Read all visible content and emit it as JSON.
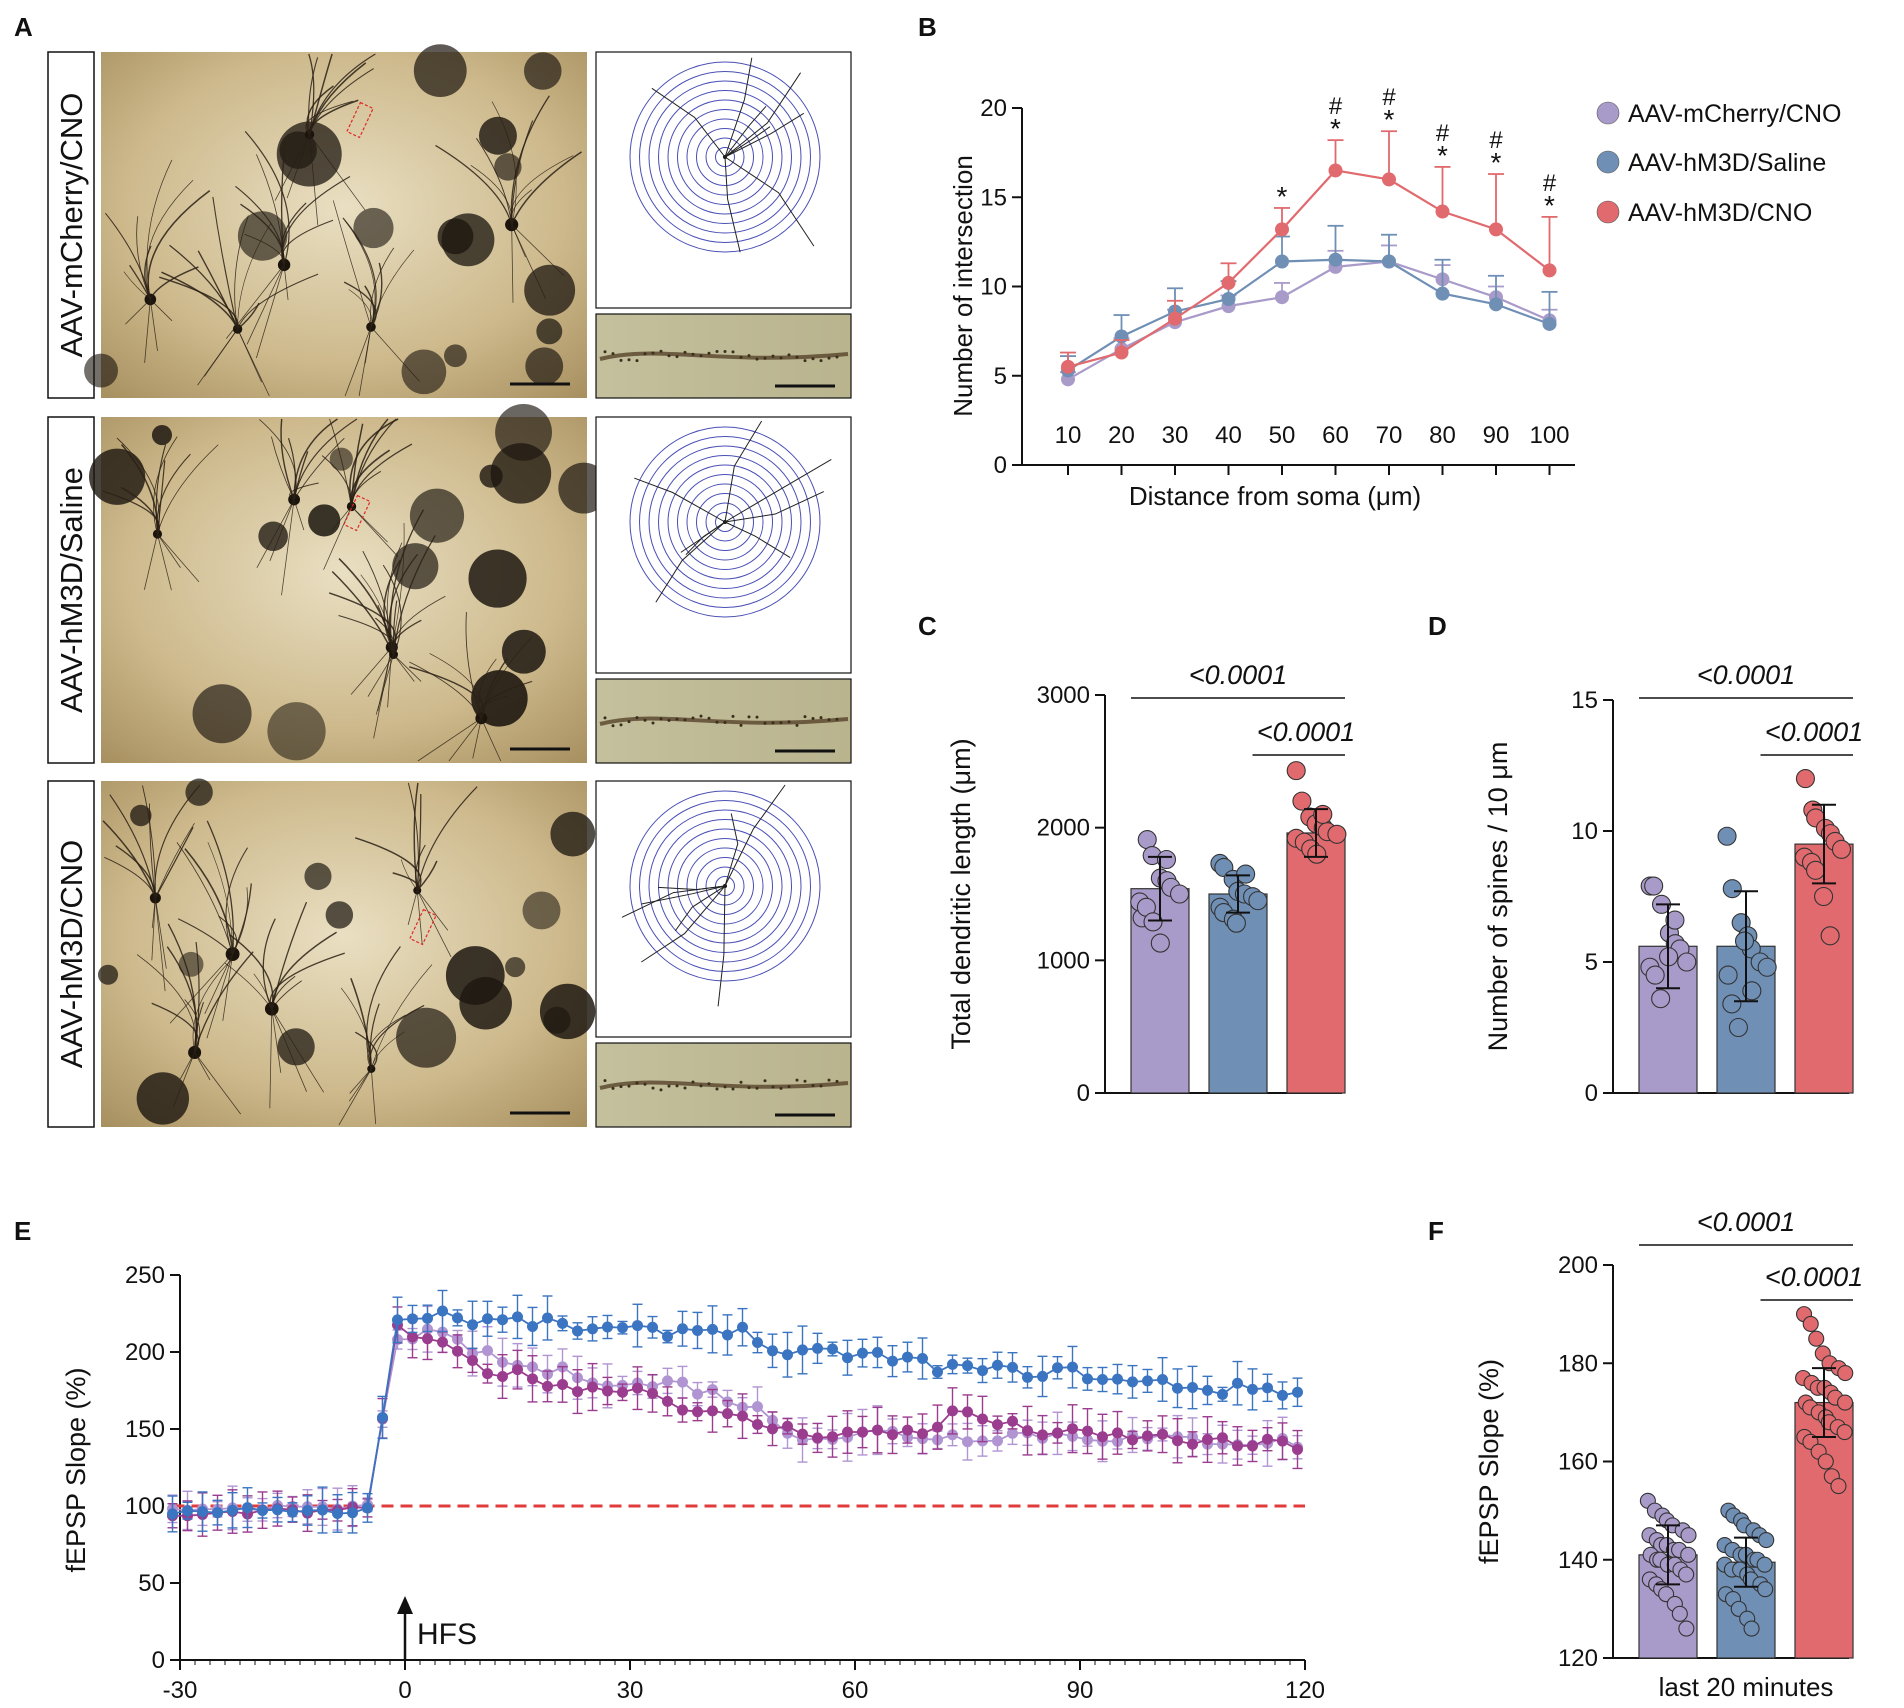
{
  "panel_letters": {
    "a": "A",
    "b": "B",
    "c": "C",
    "d": "D",
    "e": "E",
    "f": "F"
  },
  "colors": {
    "mcherry": "#a99bc9",
    "saline": "#6f8fb5",
    "hm3d_cno": "#e06a6e",
    "e_blue": "#3b74c0",
    "e_magenta": "#9b3d8f",
    "e_lavender": "#b095d2",
    "e_baseline": "#e23b3b"
  },
  "panelA": {
    "labels": [
      "AAV-mCherry/CNO",
      "AAV-hM3D/Saline",
      "AAV-hM3D/CNO"
    ]
  },
  "legend": [
    "AAV-mCherry/CNO",
    "AAV-hM3D/Saline",
    "AAV-hM3D/CNO"
  ],
  "chart_data": [
    {
      "id": "B",
      "type": "line",
      "ylabel": "Number of intersection",
      "xlabel": "Distance from soma    (μm)",
      "x": [
        10,
        20,
        30,
        40,
        50,
        60,
        70,
        80,
        90,
        100
      ],
      "ylim": [
        0,
        20
      ],
      "yticks": [
        0,
        5,
        10,
        15,
        20
      ],
      "series": [
        {
          "name": "AAV-mCherry/CNO",
          "values": [
            4.8,
            6.5,
            8.0,
            8.9,
            9.4,
            11.1,
            11.4,
            10.4,
            9.4,
            8.1
          ],
          "err": [
            0.4,
            0.6,
            0.7,
            0.6,
            0.8,
            0.9,
            0.9,
            0.8,
            0.6,
            0.6
          ]
        },
        {
          "name": "AAV-hM3D/Saline",
          "values": [
            5.3,
            7.2,
            8.6,
            9.3,
            11.4,
            11.5,
            11.4,
            9.6,
            9.0,
            7.9
          ],
          "err": [
            0.8,
            1.2,
            1.3,
            1.0,
            1.4,
            1.9,
            1.5,
            1.9,
            1.6,
            1.8
          ]
        },
        {
          "name": "AAV-hM3D/CNO",
          "values": [
            5.5,
            6.3,
            8.2,
            10.2,
            13.2,
            16.5,
            16.0,
            14.2,
            13.2,
            10.9
          ],
          "err": [
            0.8,
            0.7,
            1.0,
            1.1,
            1.2,
            1.7,
            2.7,
            2.5,
            3.1,
            3.0
          ]
        }
      ],
      "annotations": {
        "star_at": [
          50,
          60,
          70,
          80,
          90,
          100
        ],
        "hash_at": [
          60,
          70,
          80,
          90,
          100
        ],
        "star": "*",
        "hash": "#"
      }
    },
    {
      "id": "C",
      "type": "bar",
      "ylabel": "Total dendritic length (μm)",
      "categories": [
        "AAV-mCherry/CNO",
        "AAV-hM3D/Saline",
        "AAV-hM3D/CNO"
      ],
      "values": [
        1540,
        1500,
        1960
      ],
      "err": [
        240,
        140,
        180
      ],
      "ylim": [
        0,
        3000
      ],
      "yticks": [
        0,
        1000,
        2000,
        3000
      ],
      "points": [
        [
          1320,
          1910,
          1790,
          1620,
          1600,
          1550,
          1500,
          1440,
          1400,
          1290,
          1130,
          1760
        ],
        [
          1730,
          1700,
          1610,
          1520,
          1500,
          1480,
          1450,
          1400,
          1360,
          1310,
          1280,
          1650
        ],
        [
          2430,
          2200,
          2080,
          2030,
          2000,
          1970,
          1950,
          1920,
          1890,
          1840,
          1800,
          2100
        ]
      ],
      "pvalues": [
        "<0.0001",
        "<0.0001"
      ]
    },
    {
      "id": "D",
      "type": "bar",
      "ylabel": "Number of spines / 10 μm",
      "categories": [
        "AAV-mCherry/CNO",
        "AAV-hM3D/Saline",
        "AAV-hM3D/CNO"
      ],
      "values": [
        5.6,
        5.6,
        9.5
      ],
      "err": [
        1.6,
        2.1,
        1.5
      ],
      "ylim": [
        0,
        15
      ],
      "yticks": [
        0,
        5,
        10,
        15
      ],
      "points": [
        [
          7.9,
          7.9,
          7.2,
          6.1,
          5.7,
          5.5,
          5.0,
          4.8,
          4.5,
          3.6,
          5.2,
          6.6
        ],
        [
          9.8,
          7.8,
          6.5,
          6.0,
          5.5,
          5.0,
          4.8,
          4.5,
          3.4,
          2.5,
          5.8,
          3.9
        ],
        [
          12.0,
          10.8,
          10.5,
          10.1,
          9.9,
          9.6,
          9.3,
          9.0,
          8.8,
          8.5,
          7.5,
          6.0
        ]
      ],
      "pvalues": [
        "<0.0001",
        "<0.0001"
      ]
    },
    {
      "id": "E",
      "type": "line",
      "ylabel": "fEPSP Slope (%)",
      "xlim": [
        -30,
        120
      ],
      "xticks": [
        -30,
        0,
        30,
        60,
        90,
        120
      ],
      "ylim": [
        0,
        250
      ],
      "yticks": [
        0,
        50,
        100,
        150,
        200,
        250
      ],
      "baseline": 100,
      "hfs_label": "HFS",
      "hfs_at": 0,
      "anchors": {
        "blue": [
          [
            -31,
            95
          ],
          [
            -25,
            97
          ],
          [
            -18,
            98
          ],
          [
            -10,
            96
          ],
          [
            -4,
            98
          ],
          [
            -2,
            220
          ],
          [
            2,
            222
          ],
          [
            4,
            228
          ],
          [
            8,
            220
          ],
          [
            16,
            220
          ],
          [
            24,
            215
          ],
          [
            32,
            213
          ],
          [
            40,
            215
          ],
          [
            44,
            215
          ],
          [
            48,
            207
          ],
          [
            50,
            196
          ],
          [
            58,
            200
          ],
          [
            66,
            195
          ],
          [
            72,
            190
          ],
          [
            78,
            188
          ],
          [
            84,
            187
          ],
          [
            90,
            187
          ],
          [
            96,
            180
          ],
          [
            102,
            180
          ],
          [
            108,
            175
          ],
          [
            114,
            177
          ],
          [
            120,
            173
          ]
        ],
        "magenta": [
          [
            -31,
            93
          ],
          [
            -25,
            95
          ],
          [
            -18,
            97
          ],
          [
            -10,
            96
          ],
          [
            -4,
            100
          ],
          [
            -2,
            215
          ],
          [
            2,
            210
          ],
          [
            6,
            200
          ],
          [
            12,
            187
          ],
          [
            18,
            183
          ],
          [
            24,
            175
          ],
          [
            30,
            178
          ],
          [
            36,
            168
          ],
          [
            40,
            160
          ],
          [
            46,
            155
          ],
          [
            52,
            148
          ],
          [
            58,
            147
          ],
          [
            64,
            147
          ],
          [
            70,
            150
          ],
          [
            74,
            162
          ],
          [
            80,
            152
          ],
          [
            86,
            148
          ],
          [
            92,
            145
          ],
          [
            98,
            145
          ],
          [
            104,
            143
          ],
          [
            110,
            140
          ],
          [
            116,
            140
          ],
          [
            120,
            139
          ]
        ],
        "lavender": [
          [
            -31,
            97
          ],
          [
            -25,
            99
          ],
          [
            -18,
            99
          ],
          [
            -10,
            98
          ],
          [
            -4,
            101
          ],
          [
            -2,
            210
          ],
          [
            2,
            212
          ],
          [
            6,
            208
          ],
          [
            12,
            195
          ],
          [
            18,
            188
          ],
          [
            24,
            185
          ],
          [
            30,
            178
          ],
          [
            36,
            180
          ],
          [
            40,
            175
          ],
          [
            46,
            165
          ],
          [
            52,
            147
          ],
          [
            58,
            145
          ],
          [
            64,
            148
          ],
          [
            70,
            145
          ],
          [
            76,
            145
          ],
          [
            82,
            147
          ],
          [
            88,
            146
          ],
          [
            94,
            145
          ],
          [
            100,
            143
          ],
          [
            106,
            143
          ],
          [
            112,
            142
          ],
          [
            118,
            141
          ],
          [
            120,
            140
          ]
        ]
      }
    },
    {
      "id": "F",
      "type": "bar",
      "ylabel": "fEPSP Slope (%)",
      "xlabel": "last 20 minutes",
      "categories": [
        "AAV-mCherry/CNO",
        "AAV-hM3D/Saline",
        "AAV-hM3D/CNO"
      ],
      "values": [
        141,
        139.5,
        172
      ],
      "err": [
        6,
        5,
        7
      ],
      "ylim": [
        120,
        200
      ],
      "yticks": [
        120,
        140,
        160,
        180,
        200
      ],
      "points": [
        [
          152,
          150,
          149,
          148,
          147,
          146,
          145,
          145,
          144,
          143,
          143,
          142,
          142,
          141,
          141,
          140,
          140,
          139,
          139,
          138,
          137,
          136,
          135,
          134,
          133,
          131,
          129,
          126
        ],
        [
          150,
          149,
          148,
          147,
          146,
          145,
          144,
          143,
          142,
          141,
          141,
          140,
          140,
          139,
          139,
          138,
          138,
          137,
          136,
          135,
          134,
          133,
          132,
          130,
          128,
          126
        ],
        [
          190,
          188,
          185,
          182,
          180,
          179,
          178,
          177,
          176,
          175,
          175,
          174,
          173,
          172,
          172,
          171,
          170,
          169,
          168,
          167,
          166,
          165,
          164,
          162,
          160,
          157,
          155
        ]
      ],
      "pvalues": [
        "<0.0001",
        "<0.0001"
      ]
    }
  ]
}
